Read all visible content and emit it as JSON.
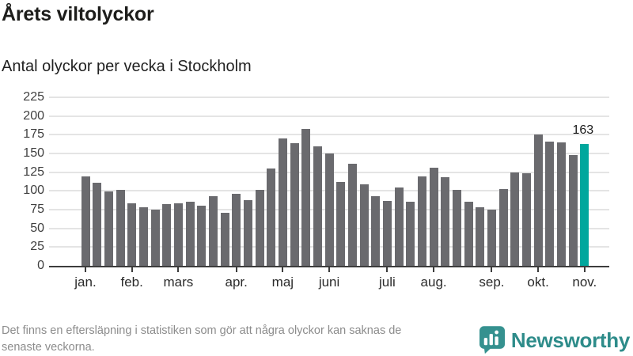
{
  "header": {
    "title": "Årets viltolyckor",
    "subtitle": "Antal olyckor per vecka i Stockholm"
  },
  "footer": {
    "note_line1": "Det finns en eftersläpning i statistiken som gör att några olyckor kan saknas de",
    "note_line2": "senaste veckorna.",
    "brand": "Newsworthy"
  },
  "chart_data": {
    "type": "bar",
    "title": "Årets viltolyckor",
    "subtitle": "Antal olyckor per vecka i Stockholm",
    "x_description": "veckor 1-44 av året",
    "values": [
      119,
      111,
      99,
      101,
      83,
      78,
      75,
      82,
      83,
      86,
      80,
      93,
      71,
      96,
      88,
      101,
      130,
      170,
      164,
      183,
      160,
      150,
      112,
      136,
      109,
      93,
      87,
      105,
      86,
      119,
      131,
      118,
      101,
      86,
      78,
      75,
      102,
      125,
      124,
      175,
      166,
      165,
      148,
      163
    ],
    "month_ticks": [
      {
        "label": "jan.",
        "index": 0
      },
      {
        "label": "feb.",
        "index": 4
      },
      {
        "label": "mars",
        "index": 8
      },
      {
        "label": "apr.",
        "index": 13
      },
      {
        "label": "maj",
        "index": 17
      },
      {
        "label": "juni",
        "index": 21
      },
      {
        "label": "juli",
        "index": 26
      },
      {
        "label": "aug.",
        "index": 30
      },
      {
        "label": "sep.",
        "index": 35
      },
      {
        "label": "okt.",
        "index": 39
      },
      {
        "label": "nov.",
        "index": 43
      }
    ],
    "y_ticks": [
      0,
      25,
      50,
      75,
      100,
      125,
      150,
      175,
      200,
      225
    ],
    "ylim": [
      0,
      225
    ],
    "grid": true,
    "legend": "none",
    "highlight_index": 43,
    "highlight_label": "163",
    "colors": {
      "bar": "#6a6a6e",
      "highlight": "#00a79d",
      "grid": "#e4e4e4",
      "axis": "#3d3d3d"
    }
  }
}
